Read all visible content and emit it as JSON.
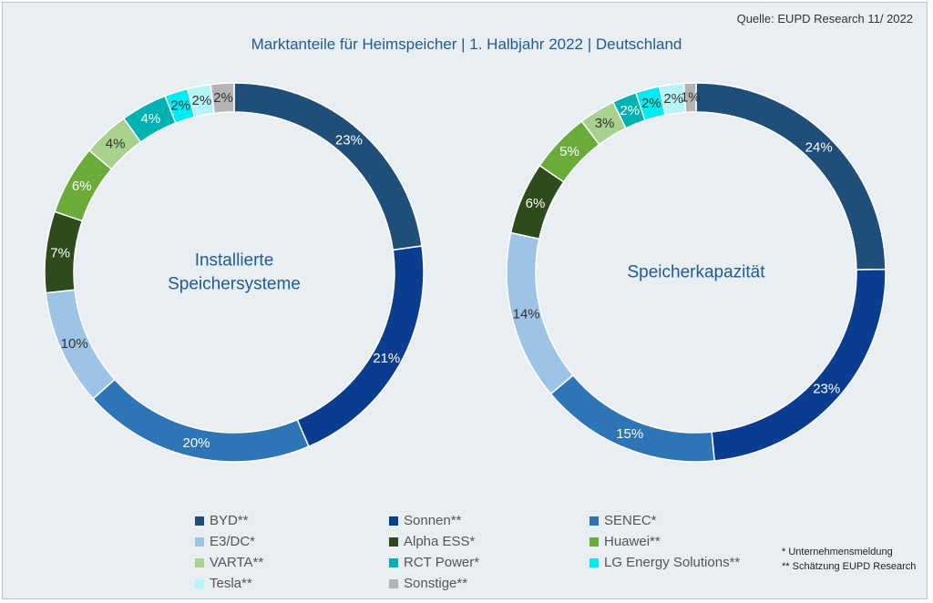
{
  "source": "Quelle: EUPD Research 11/ 2022",
  "title": "Marktanteile für Heimspeicher | 1. Halbjahr 2022 | Deutschland",
  "colors": {
    "BYD**": "#1f4e79",
    "Sonnen**": "#0a3d8f",
    "SENEC*": "#2e75b6",
    "E3/DC*": "#9dc3e6",
    "Alpha ESS*": "#2d4b1b",
    "Huawei**": "#6aab3a",
    "VARTA**": "#a9d18e",
    "RCT Power*": "#00b2b2",
    "LG Energy Solutions**": "#00ecf5",
    "Tesla**": "#b7f4f8",
    "Sonstige**": "#b4b4b4"
  },
  "legend": [
    "BYD**",
    "Sonnen**",
    "SENEC*",
    "E3/DC*",
    "Alpha ESS*",
    "Huawei**",
    "VARTA**",
    "RCT Power*",
    "LG Energy Solutions**",
    "Tesla**",
    "Sonstige**"
  ],
  "notes": [
    "* Unternehmensmeldung",
    "** Schätzung EUPD Research"
  ],
  "chart_data": [
    {
      "type": "pie",
      "center_label": [
        "Installierte",
        "Speichersysteme"
      ],
      "categories": [
        "BYD**",
        "Sonnen**",
        "SENEC*",
        "E3/DC*",
        "Alpha ESS*",
        "Huawei**",
        "VARTA**",
        "RCT Power*",
        "LG Energy Solutions**",
        "Tesla**",
        "Sonstige**"
      ],
      "values": [
        23,
        21,
        20,
        10,
        7,
        6,
        4,
        4,
        2,
        2,
        2
      ],
      "labels": [
        "23%",
        "21%",
        "20%",
        "10%",
        "7%",
        "6%",
        "4%",
        "4%",
        "2%",
        "2%",
        "2%"
      ]
    },
    {
      "type": "pie",
      "center_label": [
        "Speicherkapazität"
      ],
      "categories": [
        "BYD**",
        "Sonnen**",
        "SENEC*",
        "E3/DC*",
        "Alpha ESS*",
        "Huawei**",
        "VARTA**",
        "RCT Power*",
        "LG Energy Solutions**",
        "Tesla**",
        "Sonstige**"
      ],
      "values": [
        24,
        23,
        15,
        14,
        6,
        5,
        3,
        2,
        2,
        2,
        1
      ],
      "labels": [
        "24%",
        "23%",
        "15%",
        "14%",
        "6%",
        "5%",
        "3%",
        "2%",
        "2%",
        "2%",
        "1%"
      ]
    }
  ]
}
